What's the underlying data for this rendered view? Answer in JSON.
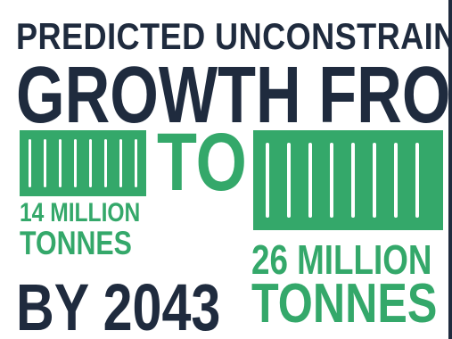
{
  "headline": {
    "line1": "PREDICTED UNCONSTRAINED",
    "line2": "GROWTH FROM"
  },
  "connector": "TO",
  "from": {
    "amount": "14 MILLION",
    "unit": "TONNES"
  },
  "to": {
    "amount": "26 MILLION",
    "unit": "TONNES"
  },
  "year_line": "BY 2043",
  "icons": {
    "from_container": "shipping-container-icon",
    "to_container": "shipping-container-icon"
  },
  "colors": {
    "navy": "#1f2b3e",
    "green": "#34a86a",
    "background": "#ffffff"
  }
}
